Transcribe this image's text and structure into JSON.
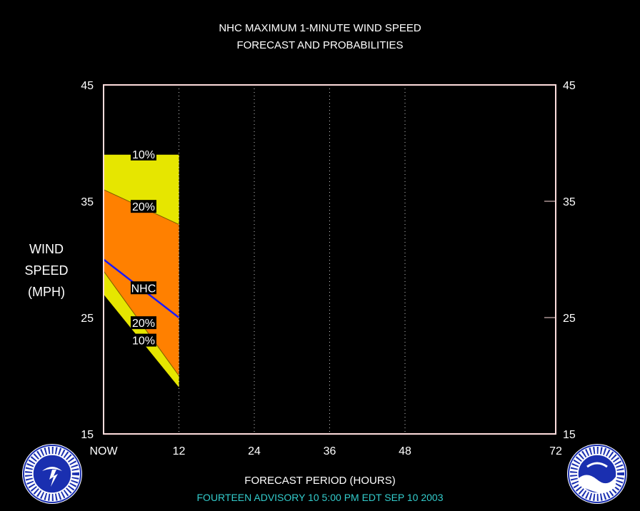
{
  "chart_data": {
    "type": "area",
    "title": "NHC MAXIMUM 1-MINUTE WIND SPEED",
    "subtitle": "FORECAST AND PROBABILITIES",
    "xlabel": "FORECAST PERIOD (HOURS)",
    "ylabel_lines": [
      "WIND",
      "SPEED",
      "(MPH)"
    ],
    "x_ticks": [
      0,
      12,
      24,
      36,
      48,
      72
    ],
    "x_tick_labels": [
      "NOW",
      "12",
      "24",
      "36",
      "48",
      "72"
    ],
    "y_ticks": [
      15,
      25,
      35,
      45
    ],
    "y_tick_labels": [
      "15",
      "25",
      "35",
      "45"
    ],
    "xlim": [
      0,
      72
    ],
    "ylim": [
      15,
      45
    ],
    "x": [
      0,
      12
    ],
    "series": [
      {
        "name": "10%",
        "band": "upper",
        "values": [
          39,
          39
        ],
        "color": "#e6e600"
      },
      {
        "name": "20%",
        "band": "upper",
        "values": [
          36,
          33
        ],
        "color": "#ff8000"
      },
      {
        "name": "NHC",
        "values": [
          30,
          25
        ],
        "color": "#1a1aff"
      },
      {
        "name": "20%",
        "band": "lower",
        "values": [
          29,
          20
        ],
        "color": "#ff8000"
      },
      {
        "name": "10%",
        "band": "lower",
        "values": [
          27,
          19
        ],
        "color": "#e6e600"
      }
    ],
    "annotations": [
      {
        "text": "10%",
        "x": 5,
        "y": 39
      },
      {
        "text": "20%",
        "x": 5,
        "y": 34.5
      },
      {
        "text": "NHC",
        "x": 5,
        "y": 27.5
      },
      {
        "text": "20%",
        "x": 5,
        "y": 24.5
      },
      {
        "text": "10%",
        "x": 5,
        "y": 23
      }
    ],
    "grid": "vertical-dotted"
  },
  "footer": {
    "advisory": "FOURTEEN   ADVISORY  10 5:00  PM  EDT  SEP  10  2003"
  },
  "logos": {
    "left": "nws-logo",
    "right": "noaa-logo"
  }
}
